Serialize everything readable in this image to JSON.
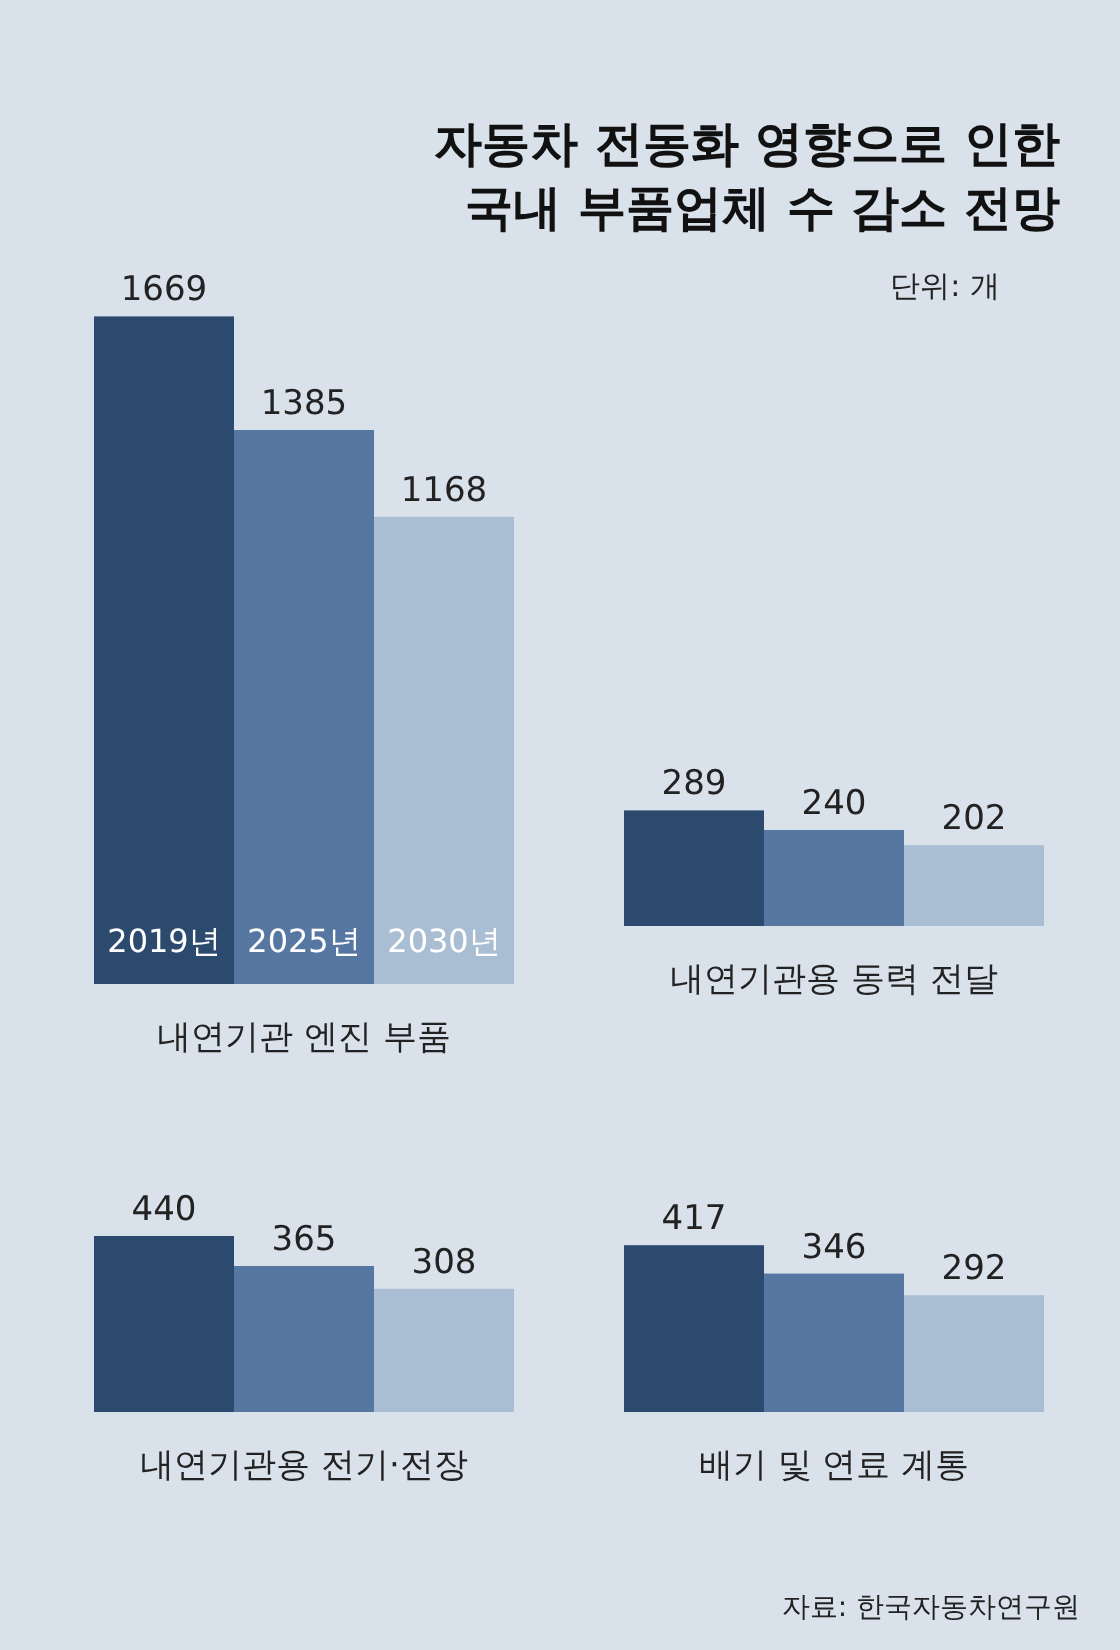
{
  "chart_data": [
    {
      "type": "bar",
      "title": "자동차 전동화 영향으로 인한\n국내 부품업체 수 감소 전망",
      "xlabel": "내연기관 엔진 부품",
      "categories": [
        "2019년",
        "2025년",
        "2030년"
      ],
      "values": [
        1669,
        1385,
        1168
      ],
      "colors": [
        "#2c4a6e",
        "#5677a1",
        "#a9bdd3"
      ],
      "data_labels": true
    },
    {
      "type": "bar",
      "subtitle": "단위: 개",
      "xlabel": "내연기관용 동력 전달",
      "categories": [
        null,
        null,
        null
      ],
      "values": [
        289,
        240,
        202
      ],
      "colors": [
        "#2c4a6e",
        "#5677a1",
        "#a9bdd3"
      ],
      "data_labels": true
    },
    {
      "type": "bar",
      "xlabel": "내연기관용 전기·전장",
      "categories": [
        null,
        null,
        null
      ],
      "values": [
        440,
        365,
        308
      ],
      "colors": [
        "#2c4a6e",
        "#5677a1",
        "#a9bdd3"
      ],
      "data_labels": true
    },
    {
      "type": "bar",
      "xlabel": "배기 및 연료 계통",
      "categories": [
        null,
        null,
        null
      ],
      "values": [
        417,
        346,
        292
      ],
      "colors": [
        "#2c4a6e",
        "#5677a1",
        "#a9bdd3"
      ],
      "data_labels": true,
      "annotations": [
        "자료: 한국자동차연구원"
      ]
    }
  ]
}
